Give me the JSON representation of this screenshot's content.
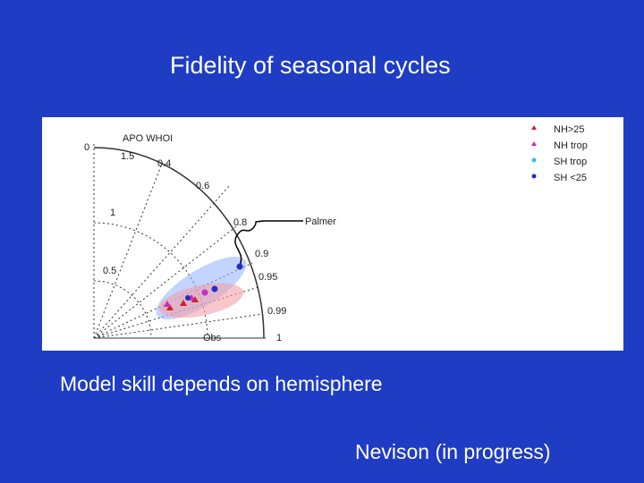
{
  "slide": {
    "title": "Fidelity of seasonal cycles",
    "caption": "Model skill depends on hemisphere",
    "credit": "Nevison (in progress)"
  },
  "figure": {
    "title": "APO WHOI",
    "annotation": "Palmer",
    "legend": [
      {
        "label": "NH>25",
        "color": "#d42020"
      },
      {
        "label": "NH trop",
        "color": "#c030c0"
      },
      {
        "label": "SH trop",
        "color": "#30c8d8"
      },
      {
        "label": "SH <25",
        "color": "#2030c0"
      }
    ],
    "std_labels": [
      "0",
      "1.5",
      "1",
      "0.5",
      "Obs",
      "1"
    ],
    "corr_labels": [
      "0.4",
      "0.6",
      "0.8",
      "0.9",
      "0.95",
      "0.99"
    ]
  }
}
